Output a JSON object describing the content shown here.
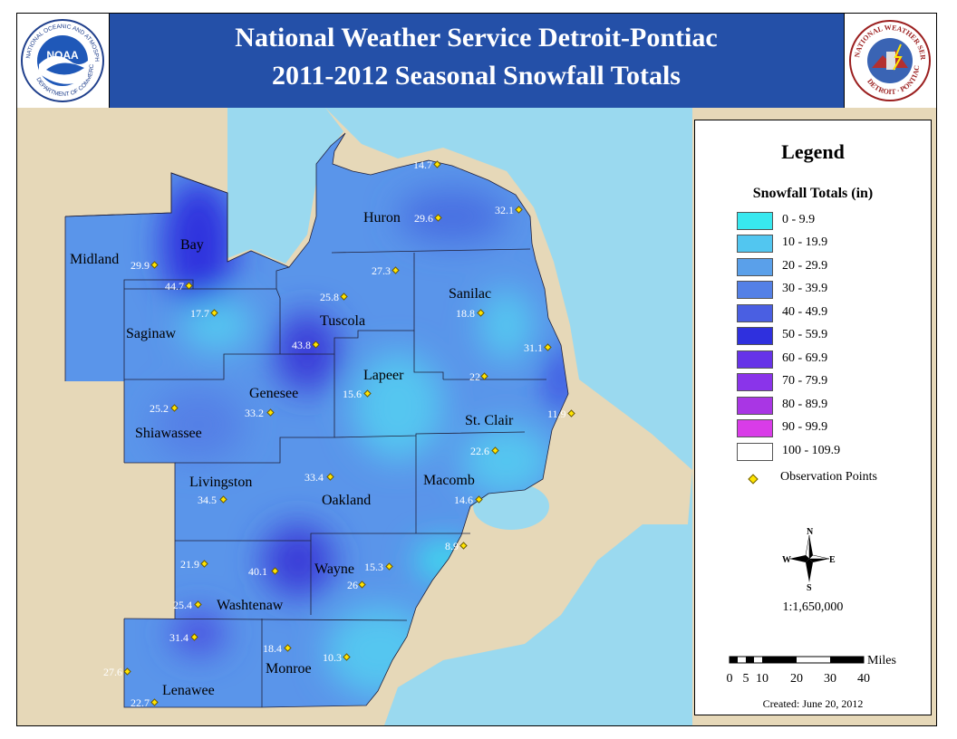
{
  "header": {
    "title_line1": "National Weather Service Detroit-Pontiac",
    "title_line2": "2011-2012 Seasonal Snowfall Totals",
    "left_logo": {
      "icon": "noaa-logo",
      "text": "NATIONAL OCEANIC AND ATMOSPHERIC ADMINISTRATION",
      "bottom_text": "DEPARTMENT OF COMMERCE",
      "center": "NOAA"
    },
    "right_logo": {
      "icon": "nws-detroit-logo",
      "text": "NATIONAL WEATHER SERVICE",
      "bottom_text": "DETROIT · PONTIAC"
    }
  },
  "legend": {
    "title": "Legend",
    "subtitle": "Snowfall Totals (in)",
    "classes": [
      {
        "label": "0 - 9.9",
        "color": "#38e8ef"
      },
      {
        "label": "10 - 19.9",
        "color": "#52c6f0"
      },
      {
        "label": "20 - 29.9",
        "color": "#5aa0ea"
      },
      {
        "label": "30 - 39.9",
        "color": "#5480e6"
      },
      {
        "label": "40 - 49.9",
        "color": "#4a5fe2"
      },
      {
        "label": "50 - 59.9",
        "color": "#2f30de"
      },
      {
        "label": "60 - 69.9",
        "color": "#6633e8"
      },
      {
        "label": "70 - 79.9",
        "color": "#8a34ea"
      },
      {
        "label": "80 - 89.9",
        "color": "#a936e4"
      },
      {
        "label": "90 - 99.9",
        "color": "#d93ce8"
      },
      {
        "label": "100 - 109.9",
        "color": "#ffffff"
      }
    ],
    "observation_label": "Observation Points",
    "compass": {
      "n": "N",
      "s": "S",
      "e": "E",
      "w": "W"
    },
    "scale_ratio": "1:1,650,000",
    "scale_unit": "Miles",
    "scale_ticks": [
      "0",
      "5",
      "10",
      "20",
      "30",
      "40"
    ],
    "created": "Created: June 20, 2012"
  },
  "map": {
    "colors": {
      "land": "#e6d8b8",
      "water": "#9ad9ef"
    },
    "counties": [
      "Midland",
      "Bay",
      "Huron",
      "Saginaw",
      "Tuscola",
      "Sanilac",
      "Genesee",
      "Lapeer",
      "Shiawassee",
      "St. Clair",
      "Livingston",
      "Oakland",
      "Macomb",
      "Washtenaw",
      "Wayne",
      "Lenawee",
      "Monroe"
    ],
    "observations": [
      "14.7",
      "29.6",
      "32.1",
      "29.9",
      "44.7",
      "27.3",
      "25.8",
      "18.8",
      "17.7",
      "43.8",
      "31.1",
      "22",
      "15.6",
      "25.2",
      "33.2",
      "11.9",
      "22.6",
      "34.5",
      "33.4",
      "14.6",
      "21.9",
      "40.1",
      "15.3",
      "8.9",
      "26",
      "25.4",
      "31.4",
      "18.4",
      "10.3",
      "27.6",
      "22.7"
    ]
  }
}
